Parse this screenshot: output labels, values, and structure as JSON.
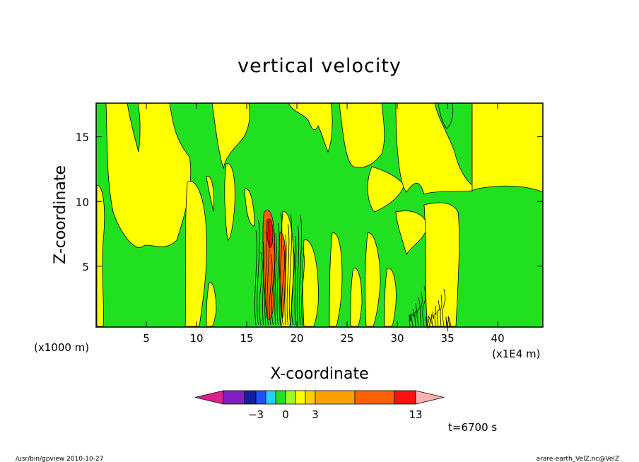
{
  "chart_data": {
    "type": "heatmap",
    "title": "vertical velocity",
    "xlabel": "X-coordinate",
    "ylabel": "Z-coordinate",
    "x_unit_note": "(x1E4 m)",
    "y_unit_note": "(x1000 m)",
    "xlim": [
      0,
      44.5
    ],
    "ylim": [
      0.3,
      17.6
    ],
    "x_ticks": [
      5,
      10,
      15,
      20,
      25,
      30,
      35,
      40
    ],
    "y_ticks": [
      5,
      10,
      15
    ],
    "colorbar": {
      "labels": [
        {
          "value": -3,
          "text": "−3"
        },
        {
          "value": 0,
          "text": "0"
        },
        {
          "value": 3,
          "text": "3"
        },
        {
          "value": 13,
          "text": "13"
        }
      ],
      "colors": [
        "#e0208c",
        "#8020c0",
        "#1020a0",
        "#2050ff",
        "#20d0ff",
        "#20e020",
        "#a0ff20",
        "#ffff00",
        "#ffd000",
        "#ffa000",
        "#ff6000",
        "#ff1010",
        "#ff7070",
        "#ffb0b0"
      ]
    },
    "fields": {
      "background_color": "#20e020",
      "positive_color": "#ffff00",
      "strong_color": "#ff6000",
      "peak_color": "#ff1010"
    },
    "time_label": "t=6700 s"
  },
  "footer": {
    "left": "/usr/bin/gpview   2010-10-27",
    "right": "arare-earth_VelZ.nc@VelZ"
  }
}
